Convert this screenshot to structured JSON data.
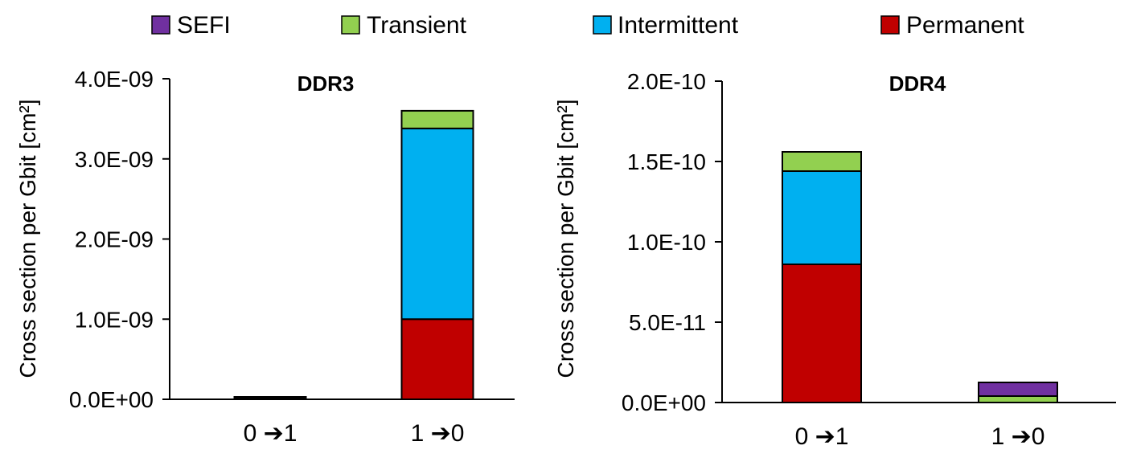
{
  "legend": [
    {
      "name": "SEFI",
      "color": "#7030a0"
    },
    {
      "name": "Transient",
      "color": "#92d050"
    },
    {
      "name": "Intermittent",
      "color": "#00b0f0"
    },
    {
      "name": "Permanent",
      "color": "#c00000"
    }
  ],
  "chart_data": [
    {
      "type": "bar",
      "stacked": true,
      "title": "DDR3",
      "ylabel": "Cross section per Gbit [cm²]",
      "xlabel": "",
      "categories": [
        "0 ➔1",
        "1 ➔0"
      ],
      "ylim": [
        0,
        4e-09
      ],
      "yticks": [
        0,
        1e-09,
        2e-09,
        3e-09,
        4e-09
      ],
      "ytick_labels": [
        "0.0E+00",
        "1.0E-09",
        "2.0E-09",
        "3.0E-09",
        "4.0E-09"
      ],
      "series": [
        {
          "name": "Permanent",
          "color": "#c00000",
          "values": [
            0,
            1e-09
          ]
        },
        {
          "name": "Intermittent",
          "color": "#00b0f0",
          "values": [
            1e-11,
            2.38e-09
          ]
        },
        {
          "name": "Transient",
          "color": "#92d050",
          "values": [
            1e-11,
            2.2e-10
          ]
        },
        {
          "name": "SEFI",
          "color": "#7030a0",
          "values": [
            1e-11,
            0
          ]
        }
      ],
      "grid": false,
      "legend_position": "top"
    },
    {
      "type": "bar",
      "stacked": true,
      "title": "DDR4",
      "ylabel": "Cross section per Gbit [cm²]",
      "xlabel": "",
      "categories": [
        "0 ➔1",
        "1 ➔0"
      ],
      "ylim": [
        0,
        2e-10
      ],
      "yticks": [
        0,
        5e-11,
        1e-10,
        1.5e-10,
        2e-10
      ],
      "ytick_labels": [
        "0.0E+00",
        "5.0E-11",
        "1.0E-10",
        "1.5E-10",
        "2.0E-10"
      ],
      "series": [
        {
          "name": "Permanent",
          "color": "#c00000",
          "values": [
            8.6e-11,
            0
          ]
        },
        {
          "name": "Intermittent",
          "color": "#00b0f0",
          "values": [
            5.8e-11,
            0
          ]
        },
        {
          "name": "Transient",
          "color": "#92d050",
          "values": [
            1.2e-11,
            4e-12
          ]
        },
        {
          "name": "SEFI",
          "color": "#7030a0",
          "values": [
            0,
            8.5e-12
          ]
        }
      ],
      "grid": false,
      "legend_position": "top"
    }
  ]
}
